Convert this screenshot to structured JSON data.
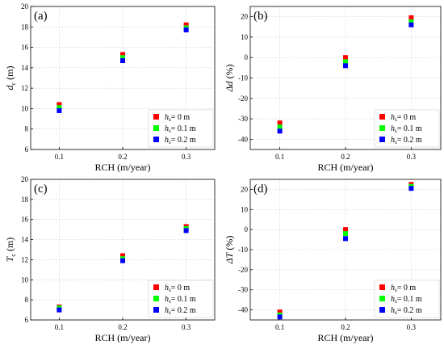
{
  "chart_data": [
    {
      "type": "scatter",
      "panel_label": "(a)",
      "xlabel": "RCH (m/year)",
      "ylabel": {
        "main": "d",
        "sub": "c",
        "unit": " (m)",
        "italic": true
      },
      "x": [
        0.1,
        0.2,
        0.3
      ],
      "xticks": [
        "0.1",
        "0.2",
        "0.3"
      ],
      "ylim": [
        6,
        20
      ],
      "yticks": [
        6,
        8,
        10,
        12,
        14,
        16,
        18,
        20
      ],
      "grid": true,
      "legend_position": "bottom-right",
      "series": [
        {
          "legend": {
            "main": "h",
            "sub": "s",
            "text": "= 0 m"
          },
          "color": "#ff0000",
          "values": [
            10.4,
            15.3,
            18.2
          ]
        },
        {
          "legend": {
            "main": "h",
            "sub": "s",
            "text": "= 0.1 m"
          },
          "color": "#00ff00",
          "values": [
            10.1,
            15.0,
            17.9
          ]
        },
        {
          "legend": {
            "main": "h",
            "sub": "s",
            "text": "= 0.2 m"
          },
          "color": "#0000ff",
          "values": [
            9.8,
            14.7,
            17.7
          ]
        }
      ]
    },
    {
      "type": "scatter",
      "panel_label": "(b)",
      "xlabel": "RCH (m/year)",
      "ylabel": {
        "main": "Δd",
        "sub": "",
        "unit": " (%)",
        "italic": true
      },
      "x": [
        0.1,
        0.2,
        0.3
      ],
      "xticks": [
        "0.1",
        "0.2",
        "0.3"
      ],
      "ylim": [
        -45,
        25
      ],
      "yticks": [
        -40,
        -30,
        -20,
        -10,
        0,
        10,
        20
      ],
      "grid": true,
      "legend_position": "bottom-right",
      "series": [
        {
          "legend": {
            "main": "h",
            "sub": "s",
            "text": "= 0 m"
          },
          "color": "#ff0000",
          "values": [
            -32,
            0,
            19.5
          ]
        },
        {
          "legend": {
            "main": "h",
            "sub": "s",
            "text": "= 0.1 m"
          },
          "color": "#00ff00",
          "values": [
            -34,
            -2,
            17.5
          ]
        },
        {
          "legend": {
            "main": "h",
            "sub": "s",
            "text": "= 0.2 m"
          },
          "color": "#0000ff",
          "values": [
            -36,
            -4,
            16
          ]
        }
      ]
    },
    {
      "type": "scatter",
      "panel_label": "(c)",
      "xlabel": "RCH (m/year)",
      "ylabel": {
        "main": "T",
        "sub": "c",
        "unit": " (m)",
        "italic": true
      },
      "x": [
        0.1,
        0.2,
        0.3
      ],
      "xticks": [
        "0.1",
        "0.2",
        "0.3"
      ],
      "ylim": [
        6,
        20
      ],
      "yticks": [
        6,
        8,
        10,
        12,
        14,
        16,
        18,
        20
      ],
      "grid": true,
      "legend_position": "bottom-right",
      "series": [
        {
          "legend": {
            "main": "h",
            "sub": "s",
            "text": "= 0 m"
          },
          "color": "#ff0000",
          "values": [
            7.3,
            12.4,
            15.3
          ]
        },
        {
          "legend": {
            "main": "h",
            "sub": "s",
            "text": "= 0.1 m"
          },
          "color": "#00ff00",
          "values": [
            7.2,
            12.1,
            15.1
          ]
        },
        {
          "legend": {
            "main": "h",
            "sub": "s",
            "text": "= 0.2 m"
          },
          "color": "#0000ff",
          "values": [
            7.0,
            11.9,
            14.9
          ]
        }
      ]
    },
    {
      "type": "scatter",
      "panel_label": "(d)",
      "xlabel": "RCH (m/year)",
      "ylabel": {
        "main": "ΔT",
        "sub": "",
        "unit": " (%)",
        "italic": true
      },
      "x": [
        0.1,
        0.2,
        0.3
      ],
      "xticks": [
        "0.1",
        "0.2",
        "0.3"
      ],
      "ylim": [
        -45,
        25
      ],
      "yticks": [
        -40,
        -30,
        -20,
        -10,
        0,
        10,
        20
      ],
      "grid": true,
      "legend_position": "bottom-right",
      "series": [
        {
          "legend": {
            "main": "h",
            "sub": "s",
            "text": "= 0 m"
          },
          "color": "#ff0000",
          "values": [
            -41,
            0,
            22.5
          ]
        },
        {
          "legend": {
            "main": "h",
            "sub": "s",
            "text": "= 0.1 m"
          },
          "color": "#00ff00",
          "values": [
            -42.5,
            -2,
            21.5
          ]
        },
        {
          "legend": {
            "main": "h",
            "sub": "s",
            "text": "= 0.2 m"
          },
          "color": "#0000ff",
          "values": [
            -43.5,
            -4.5,
            20.5
          ]
        }
      ]
    }
  ]
}
